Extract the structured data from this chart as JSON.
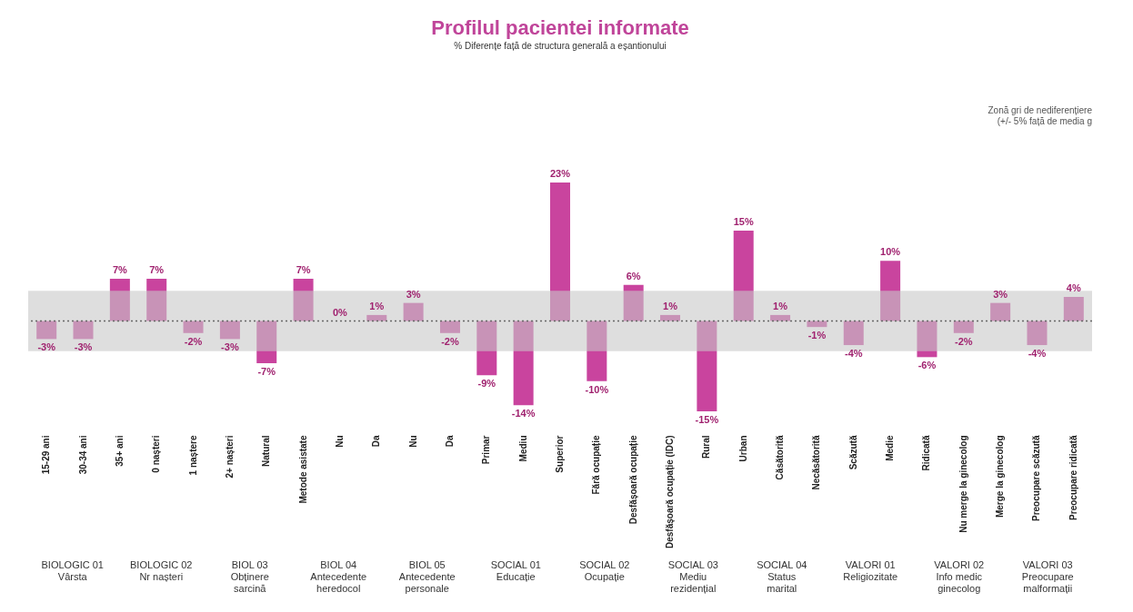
{
  "chart_data": {
    "type": "bar",
    "title": "Profilul pacientei informate",
    "subtitle": "% Diferențe față de structura generală a eșantionului",
    "categories": [
      "15-29 ani",
      "30-34 ani",
      "35+ ani",
      "0 nașteri",
      "1 naștere",
      "2+ nașteri",
      "Natural",
      "Metode asistate",
      "Nu",
      "Da",
      "Nu",
      "Da",
      "Primar",
      "Mediu",
      "Superior",
      "Fără ocupație",
      "Desfășoară ocupație",
      "Desfășoară ocupație (IDC)",
      "Rural",
      "Urban",
      "Căsătorită",
      "Necăsătorită",
      "Scăzută",
      "Medie",
      "Ridicată",
      "Nu merge la ginecolog",
      "Merge la ginecolog",
      "Preocupare scăzută",
      "Preocupare ridicată"
    ],
    "values": [
      -3,
      -3,
      7,
      7,
      -2,
      -3,
      -7,
      7,
      0,
      1,
      3,
      -2,
      -9,
      -14,
      23,
      -10,
      6,
      1,
      -15,
      15,
      1,
      -1,
      -4,
      10,
      -6,
      -2,
      3,
      -4,
      4
    ],
    "value_labels": [
      "-3%",
      "-3%",
      "7%",
      "7%",
      "-2%",
      "-3%",
      "-7%",
      "7%",
      "0%",
      "1%",
      "3%",
      "-2%",
      "-9%",
      "-14%",
      "23%",
      "-10%",
      "6%",
      "1%",
      "-15%",
      "15%",
      "1%",
      "-1%",
      "-4%",
      "10%",
      "-6%",
      "-2%",
      "3%",
      "-4%",
      "4%"
    ],
    "color": "#c9449e",
    "bands": [
      {
        "axis": "y",
        "from": -5,
        "to": 5,
        "color": "#c8c8c8"
      }
    ],
    "ref_lines": [
      {
        "axis": "y",
        "value": 0,
        "line_style": "dotted"
      }
    ],
    "tick_labels": "x",
    "annotations": [
      "BIOLOGIC 01\nVârsta",
      "BIOLOGIC 02\nNr nașteri",
      "BIOL 03\nObținere\nsarcină",
      "BIOL 04\nAntecedente\nheredocol",
      "BIOL 05\nAntecedente\npersonale",
      "SOCIAL 01\nEducație",
      "SOCIAL 02\nOcupație",
      "SOCIAL 03\nMediu\nrezidențial",
      "SOCIAL 04\nStatus\nmarital",
      "VALORI 01\nReligiozitate",
      "VALORI 02\nInfo medic\nginecolog",
      "VALORI 03\nPreocupare\nmalformații",
      "Zonă gri de nediferențiere\n(+/- 5% față de media g"
    ]
  }
}
